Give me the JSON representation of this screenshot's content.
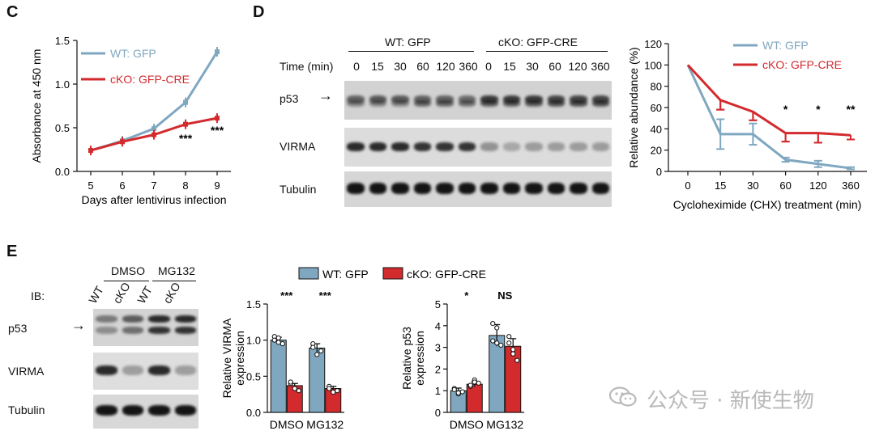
{
  "panels": {
    "c": "C",
    "d": "D",
    "e": "E"
  },
  "colors": {
    "wt": "#7fa7c0",
    "cko": "#d32a2e"
  },
  "panel_c": {
    "legend": [
      "WT: GFP",
      "cKO: GFP-CRE"
    ],
    "ylabel": "Absorbance at 450 nm",
    "xlabel": "Days after lentivirus infection",
    "sig_day8": "***",
    "sig_day9": "***"
  },
  "panel_d_blot": {
    "group_wt": "WT: GFP",
    "group_cko": "cKO: GFP-CRE",
    "time_label": "Time (min)",
    "times": [
      "0",
      "15",
      "30",
      "60",
      "120",
      "360",
      "0",
      "15",
      "30",
      "60",
      "120",
      "360"
    ],
    "rows": [
      "p53",
      "VIRMA",
      "Tubulin"
    ],
    "arrow": "→"
  },
  "panel_d_chart": {
    "legend": [
      "WT: GFP",
      "cKO: GFP-CRE"
    ],
    "ylabel": "Relative abundance (%)",
    "xlabel": "Cycloheximide (CHX) treatment (min)",
    "sig": [
      "*",
      "*",
      "**"
    ]
  },
  "panel_e_blot": {
    "groups": [
      "DMSO",
      "MG132"
    ],
    "ib": "IB:",
    "lanes": [
      "WT",
      "cKO",
      "WT",
      "cKO"
    ],
    "rows": [
      "p53",
      "VIRMA",
      "Tubulin"
    ],
    "arrow": "→"
  },
  "panel_e_chart1": {
    "legend": [
      "WT: GFP",
      "cKO: GFP-CRE"
    ],
    "ylabel_line1": "Relative VIRMA",
    "ylabel_line2": "expression",
    "sig": [
      "***",
      "***"
    ]
  },
  "panel_e_chart2": {
    "ylabel_line1": "Relative p53",
    "ylabel_line2": "expression",
    "sig": [
      "*",
      "NS"
    ]
  },
  "watermark": "公众号 · 新使生物",
  "chart_data": [
    {
      "type": "line",
      "panel": "C",
      "x": [
        5,
        6,
        7,
        8,
        9
      ],
      "series": [
        {
          "name": "WT: GFP",
          "values": [
            0.24,
            0.35,
            0.49,
            0.79,
            1.37
          ],
          "color": "#7fa7c0"
        },
        {
          "name": "cKO: GFP-CRE",
          "values": [
            0.24,
            0.34,
            0.42,
            0.54,
            0.61
          ],
          "color": "#d32a2e"
        }
      ],
      "xlabel": "Days after lentivirus infection",
      "ylabel": "Absorbance at 450 nm",
      "xticks": [
        "5",
        "6",
        "7",
        "8",
        "9"
      ],
      "yticks": [
        "0.0",
        "0.5",
        "1.0",
        "1.5"
      ],
      "ylim": [
        0,
        1.5
      ]
    },
    {
      "type": "line",
      "panel": "D",
      "categories": [
        "0",
        "15",
        "30",
        "60",
        "120",
        "360"
      ],
      "series": [
        {
          "name": "WT: GFP",
          "values": [
            100,
            35,
            35,
            11,
            7,
            3
          ],
          "errors": [
            0,
            14,
            10,
            2,
            3,
            1
          ],
          "color": "#7fa7c0"
        },
        {
          "name": "cKO: GFP-CRE",
          "values": [
            100,
            67,
            56,
            36,
            36,
            34
          ],
          "errors": [
            0,
            9,
            8,
            8,
            9,
            4
          ],
          "color": "#d32a2e"
        }
      ],
      "xlabel": "Cycloheximide (CHX) treatment (min)",
      "ylabel": "Relative abundance (%)",
      "yticks": [
        "0",
        "20",
        "40",
        "60",
        "80",
        "100",
        "120"
      ],
      "ylim": [
        0,
        120
      ]
    },
    {
      "type": "bar",
      "panel": "E-VIRMA",
      "categories": [
        "DMSO",
        "MG132"
      ],
      "series": [
        {
          "name": "WT: GFP",
          "values": [
            1.0,
            0.89
          ],
          "errors": [
            0.04,
            0.06
          ],
          "color": "#7fa7c0"
        },
        {
          "name": "cKO: GFP-CRE",
          "values": [
            0.37,
            0.33
          ],
          "errors": [
            0.03,
            0.03
          ],
          "color": "#d32a2e"
        }
      ],
      "yticks": [
        "0.0",
        "0.5",
        "1.0",
        "1.5"
      ],
      "ylim": [
        0,
        1.5
      ]
    },
    {
      "type": "bar",
      "panel": "E-p53",
      "categories": [
        "DMSO",
        "MG132"
      ],
      "series": [
        {
          "name": "WT: GFP",
          "values": [
            1.0,
            3.55
          ],
          "errors": [
            0.12,
            0.5
          ],
          "color": "#7fa7c0"
        },
        {
          "name": "cKO: GFP-CRE",
          "values": [
            1.3,
            3.05
          ],
          "errors": [
            0.12,
            0.35
          ],
          "color": "#d32a2e"
        }
      ],
      "yticks": [
        "0",
        "1",
        "2",
        "3",
        "4",
        "5"
      ],
      "ylim": [
        0,
        5
      ]
    }
  ]
}
